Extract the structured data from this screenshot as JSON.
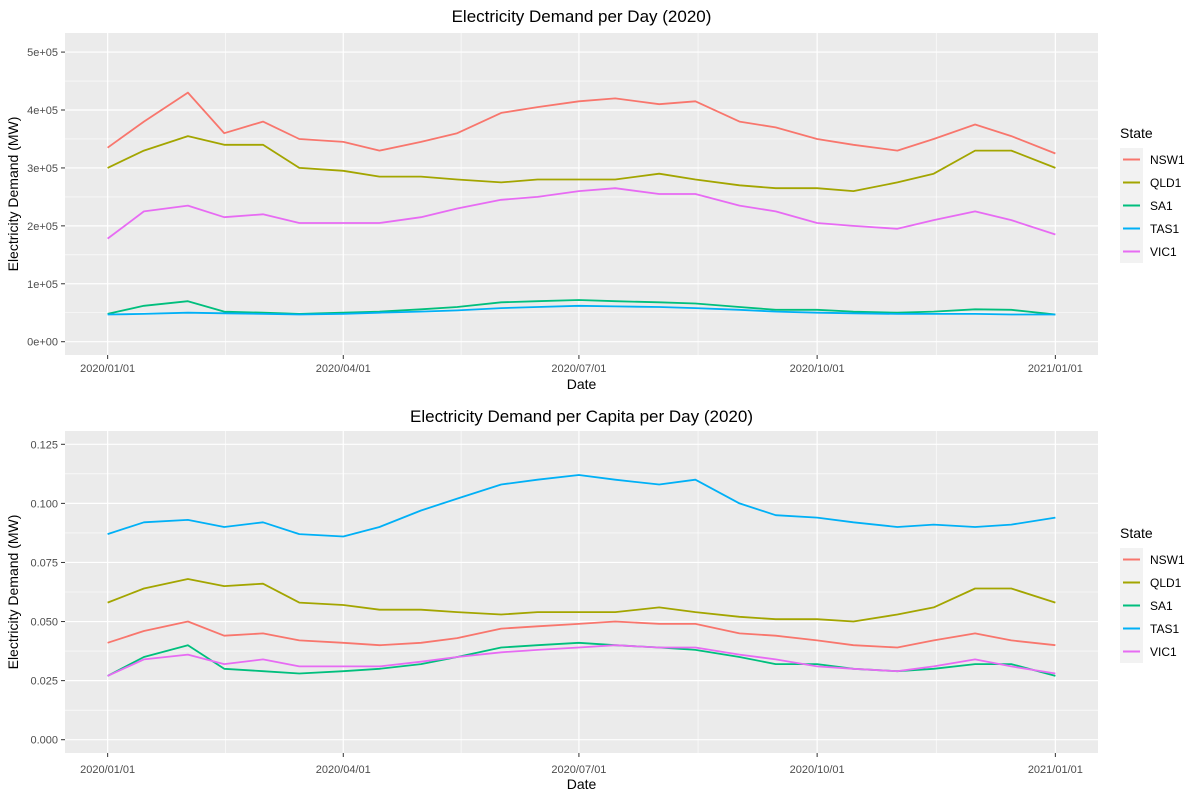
{
  "chart_data": [
    {
      "type": "line",
      "title": "Electricity Demand per Day (2020)",
      "xlabel": "Date",
      "ylabel": "Electricity Demand (MW)",
      "xlim": [
        "2020-01-01",
        "2021-01-01"
      ],
      "x_ticks": [
        "2020/01/01",
        "2020/04/01",
        "2020/07/01",
        "2020/10/01",
        "2021/01/01"
      ],
      "ylim": [
        0,
        510000
      ],
      "y_ticks": [
        {
          "value": 0,
          "label": "0e+00"
        },
        {
          "value": 100000,
          "label": "1e+05"
        },
        {
          "value": 200000,
          "label": "2e+05"
        },
        {
          "value": 300000,
          "label": "3e+05"
        },
        {
          "value": 400000,
          "label": "4e+05"
        },
        {
          "value": 500000,
          "label": "5e+05"
        }
      ],
      "grid": true,
      "legend": {
        "title": "State",
        "placement": "right"
      },
      "x": [
        "2020-01-01",
        "2020-01-15",
        "2020-02-01",
        "2020-02-15",
        "2020-03-01",
        "2020-03-15",
        "2020-04-01",
        "2020-04-15",
        "2020-05-01",
        "2020-05-15",
        "2020-06-01",
        "2020-06-15",
        "2020-07-01",
        "2020-07-15",
        "2020-08-01",
        "2020-08-15",
        "2020-09-01",
        "2020-09-15",
        "2020-10-01",
        "2020-10-15",
        "2020-11-01",
        "2020-11-15",
        "2020-12-01",
        "2020-12-15",
        "2021-01-01"
      ],
      "series": [
        {
          "name": "NSW1",
          "color": "#F8766D",
          "values": [
            335000,
            380000,
            430000,
            360000,
            380000,
            350000,
            345000,
            330000,
            345000,
            360000,
            395000,
            405000,
            415000,
            420000,
            410000,
            415000,
            380000,
            370000,
            350000,
            340000,
            330000,
            350000,
            375000,
            355000,
            325000
          ]
        },
        {
          "name": "QLD1",
          "color": "#A3A500",
          "values": [
            300000,
            330000,
            355000,
            340000,
            340000,
            300000,
            295000,
            285000,
            285000,
            280000,
            275000,
            280000,
            280000,
            280000,
            290000,
            280000,
            270000,
            265000,
            265000,
            260000,
            275000,
            290000,
            330000,
            330000,
            300000
          ]
        },
        {
          "name": "SA1",
          "color": "#00BF7D",
          "values": [
            48000,
            62000,
            70000,
            52000,
            50000,
            48000,
            50000,
            52000,
            56000,
            60000,
            68000,
            70000,
            72000,
            70000,
            68000,
            66000,
            60000,
            55000,
            55000,
            52000,
            50000,
            52000,
            56000,
            55000,
            47000
          ]
        },
        {
          "name": "TAS1",
          "color": "#00B0F6",
          "values": [
            47000,
            48000,
            50000,
            49000,
            48000,
            47000,
            48000,
            50000,
            52000,
            54000,
            58000,
            60000,
            62000,
            61000,
            60000,
            58000,
            55000,
            52000,
            50000,
            49000,
            48000,
            48000,
            48000,
            47000,
            47000
          ]
        },
        {
          "name": "VIC1",
          "color": "#E76BF3",
          "values": [
            178000,
            225000,
            235000,
            215000,
            220000,
            205000,
            205000,
            205000,
            215000,
            230000,
            245000,
            250000,
            260000,
            265000,
            255000,
            255000,
            235000,
            225000,
            205000,
            200000,
            195000,
            210000,
            225000,
            210000,
            185000
          ]
        }
      ]
    },
    {
      "type": "line",
      "title": "Electricity Demand per Capita per Day (2020)",
      "xlabel": "Date",
      "ylabel": "Electricity Demand (MW)",
      "xlim": [
        "2020-01-01",
        "2021-01-01"
      ],
      "x_ticks": [
        "2020/01/01",
        "2020/04/01",
        "2020/07/01",
        "2020/10/01",
        "2021/01/01"
      ],
      "ylim": [
        0,
        0.125
      ],
      "y_ticks": [
        {
          "value": 0,
          "label": "0.000"
        },
        {
          "value": 0.025,
          "label": "0.025"
        },
        {
          "value": 0.05,
          "label": "0.050"
        },
        {
          "value": 0.075,
          "label": "0.075"
        },
        {
          "value": 0.1,
          "label": "0.100"
        },
        {
          "value": 0.125,
          "label": "0.125"
        }
      ],
      "grid": true,
      "legend": {
        "title": "State",
        "placement": "right"
      },
      "x": [
        "2020-01-01",
        "2020-01-15",
        "2020-02-01",
        "2020-02-15",
        "2020-03-01",
        "2020-03-15",
        "2020-04-01",
        "2020-04-15",
        "2020-05-01",
        "2020-05-15",
        "2020-06-01",
        "2020-06-15",
        "2020-07-01",
        "2020-07-15",
        "2020-08-01",
        "2020-08-15",
        "2020-09-01",
        "2020-09-15",
        "2020-10-01",
        "2020-10-15",
        "2020-11-01",
        "2020-11-15",
        "2020-12-01",
        "2020-12-15",
        "2021-01-01"
      ],
      "series": [
        {
          "name": "NSW1",
          "color": "#F8766D",
          "values": [
            0.041,
            0.046,
            0.05,
            0.044,
            0.045,
            0.042,
            0.041,
            0.04,
            0.041,
            0.043,
            0.047,
            0.048,
            0.049,
            0.05,
            0.049,
            0.049,
            0.045,
            0.044,
            0.042,
            0.04,
            0.039,
            0.042,
            0.045,
            0.042,
            0.04
          ]
        },
        {
          "name": "QLD1",
          "color": "#A3A500",
          "values": [
            0.058,
            0.064,
            0.068,
            0.065,
            0.066,
            0.058,
            0.057,
            0.055,
            0.055,
            0.054,
            0.053,
            0.054,
            0.054,
            0.054,
            0.056,
            0.054,
            0.052,
            0.051,
            0.051,
            0.05,
            0.053,
            0.056,
            0.064,
            0.064,
            0.058
          ]
        },
        {
          "name": "SA1",
          "color": "#00BF7D",
          "values": [
            0.027,
            0.035,
            0.04,
            0.03,
            0.029,
            0.028,
            0.029,
            0.03,
            0.032,
            0.035,
            0.039,
            0.04,
            0.041,
            0.04,
            0.039,
            0.038,
            0.035,
            0.032,
            0.032,
            0.03,
            0.029,
            0.03,
            0.032,
            0.032,
            0.027
          ]
        },
        {
          "name": "TAS1",
          "color": "#00B0F6",
          "values": [
            0.087,
            0.092,
            0.093,
            0.09,
            0.092,
            0.087,
            0.086,
            0.09,
            0.097,
            0.102,
            0.108,
            0.11,
            0.112,
            0.11,
            0.108,
            0.11,
            0.1,
            0.095,
            0.094,
            0.092,
            0.09,
            0.091,
            0.09,
            0.091,
            0.094
          ]
        },
        {
          "name": "VIC1",
          "color": "#E76BF3",
          "values": [
            0.027,
            0.034,
            0.036,
            0.032,
            0.034,
            0.031,
            0.031,
            0.031,
            0.033,
            0.035,
            0.037,
            0.038,
            0.039,
            0.04,
            0.039,
            0.039,
            0.036,
            0.034,
            0.031,
            0.03,
            0.029,
            0.031,
            0.034,
            0.031,
            0.028
          ]
        }
      ]
    }
  ]
}
